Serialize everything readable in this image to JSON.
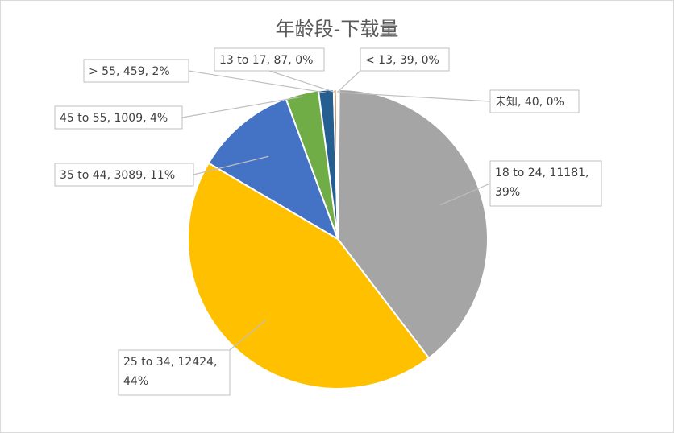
{
  "chart_data": {
    "type": "pie",
    "title": "年龄段-下载量",
    "slices": [
      {
        "name": "未知",
        "value": 40,
        "percent": "0%",
        "label_lines": [
          "未知, 40, 0%"
        ],
        "color": "#5b9bd5"
      },
      {
        "name": "18 to 24",
        "value": 11181,
        "percent": "39%",
        "label_lines": [
          "18 to 24, 11181,",
          "39%"
        ],
        "color": "#a5a5a5"
      },
      {
        "name": "25 to 34",
        "value": 12424,
        "percent": "44%",
        "label_lines": [
          "25 to 34, 12424,",
          "44%"
        ],
        "color": "#ffc000"
      },
      {
        "name": "35 to 44",
        "value": 3089,
        "percent": "11%",
        "label_lines": [
          "35 to 44, 3089, 11%"
        ],
        "color": "#4472c4"
      },
      {
        "name": "45 to 55",
        "value": 1009,
        "percent": "4%",
        "label_lines": [
          "45 to 55, 1009, 4%"
        ],
        "color": "#70ad47"
      },
      {
        "name": "> 55",
        "value": 459,
        "percent": "2%",
        "label_lines": [
          "> 55, 459, 2%"
        ],
        "color": "#255e91"
      },
      {
        "name": "13 to 17",
        "value": 87,
        "percent": "0%",
        "label_lines": [
          "13 to 17, 87, 0%"
        ],
        "color": "#9e480e"
      },
      {
        "name": "< 13",
        "value": 39,
        "percent": "0%",
        "label_lines": [
          "< 13, 39, 0%"
        ],
        "color": "#636363"
      }
    ]
  }
}
